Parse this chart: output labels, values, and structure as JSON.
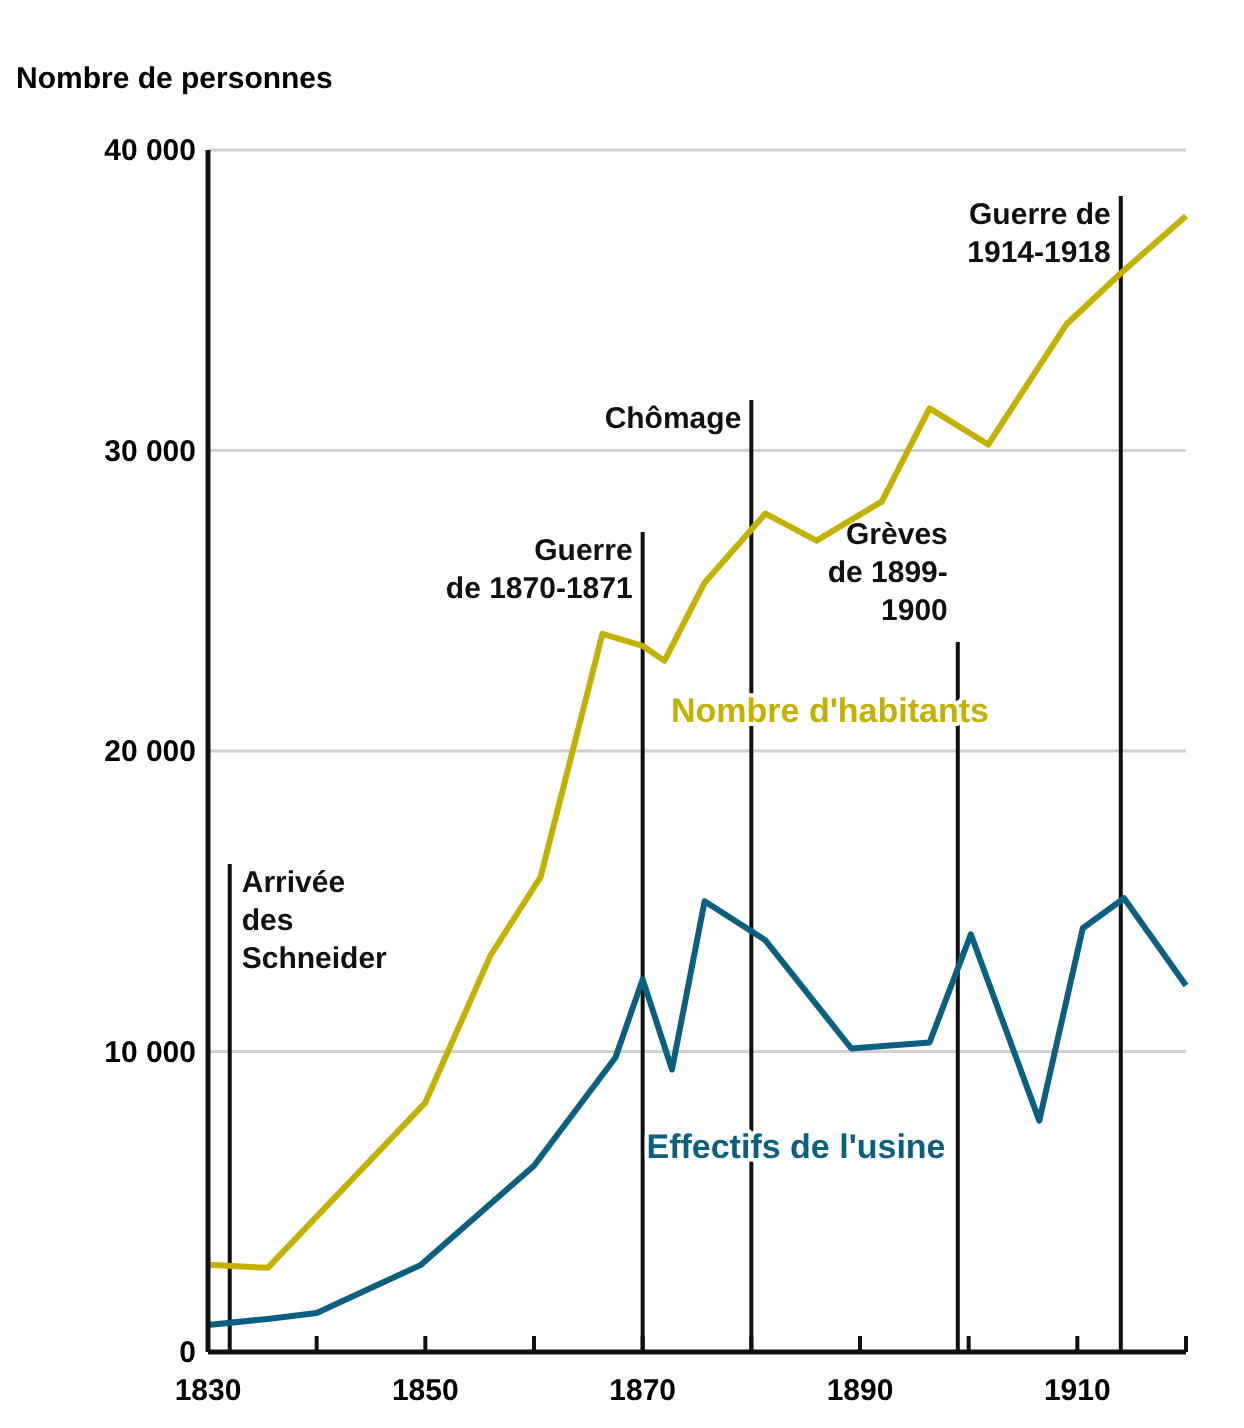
{
  "chart_data": {
    "type": "line",
    "ylabel": "Nombre de personnes",
    "xlim": [
      1830,
      1920
    ],
    "xticks": [
      1830,
      {
        "value": 1840,
        "label": null
      },
      1850,
      {
        "value": 1860,
        "label": null
      },
      1870,
      {
        "value": 1880,
        "label": null
      },
      1890,
      {
        "value": 1900,
        "label": null
      },
      1910,
      {
        "value": 1920,
        "label": null
      }
    ],
    "ylim": [
      0,
      40000
    ],
    "yticks": [
      0,
      {
        "value": 10000,
        "label": "10 000"
      },
      {
        "value": 20000,
        "label": "20 000"
      },
      {
        "value": 30000,
        "label": "30 000"
      },
      {
        "value": 40000,
        "label": "40 000"
      }
    ],
    "grid": "y",
    "marker": "none",
    "line_style": "solid",
    "series": [
      {
        "name": "Nombre d'habitants",
        "color": "#c4b000",
        "x": [
          1830,
          1835.5,
          1850,
          1856,
          1860.6,
          1866.3,
          1870,
          1872,
          1875.7,
          1881.3,
          1886,
          1892,
          1896.4,
          1901.8,
          1909,
          1914,
          1920
        ],
        "values": [
          2900,
          2800,
          8300,
          13200,
          15800,
          23900,
          23500,
          23000,
          25600,
          27900,
          27000,
          28300,
          31400,
          30200,
          34200,
          35900,
          37800
        ]
      },
      {
        "name": "Effectifs de l'usine",
        "color": "#0b5f80",
        "x": [
          1830,
          1835.5,
          1840,
          1849.6,
          1860,
          1867.5,
          1870,
          1872.7,
          1875.7,
          1881.3,
          1889.2,
          1896.4,
          1900.2,
          1906.5,
          1910.5,
          1914.3,
          1920
        ],
        "values": [
          900,
          1100,
          1300,
          2900,
          6200,
          9800,
          12400,
          9400,
          15000,
          13700,
          10100,
          10300,
          13900,
          7700,
          14100,
          15100,
          12200
        ]
      }
    ],
    "ref_lines": [
      {
        "axis": "x",
        "value": 1832,
        "label": "Arrivée\ndes\nSchneider"
      },
      {
        "axis": "x",
        "value": 1870,
        "label": "Guerre\nde 1870-1871"
      },
      {
        "axis": "x",
        "value": 1880,
        "label": "Chômage"
      },
      {
        "axis": "x",
        "value": 1899,
        "label": "Grèves\nde 1899-\n1900"
      },
      {
        "axis": "x",
        "value": 1914,
        "label": "Guerre de\n1914-1918"
      }
    ]
  }
}
